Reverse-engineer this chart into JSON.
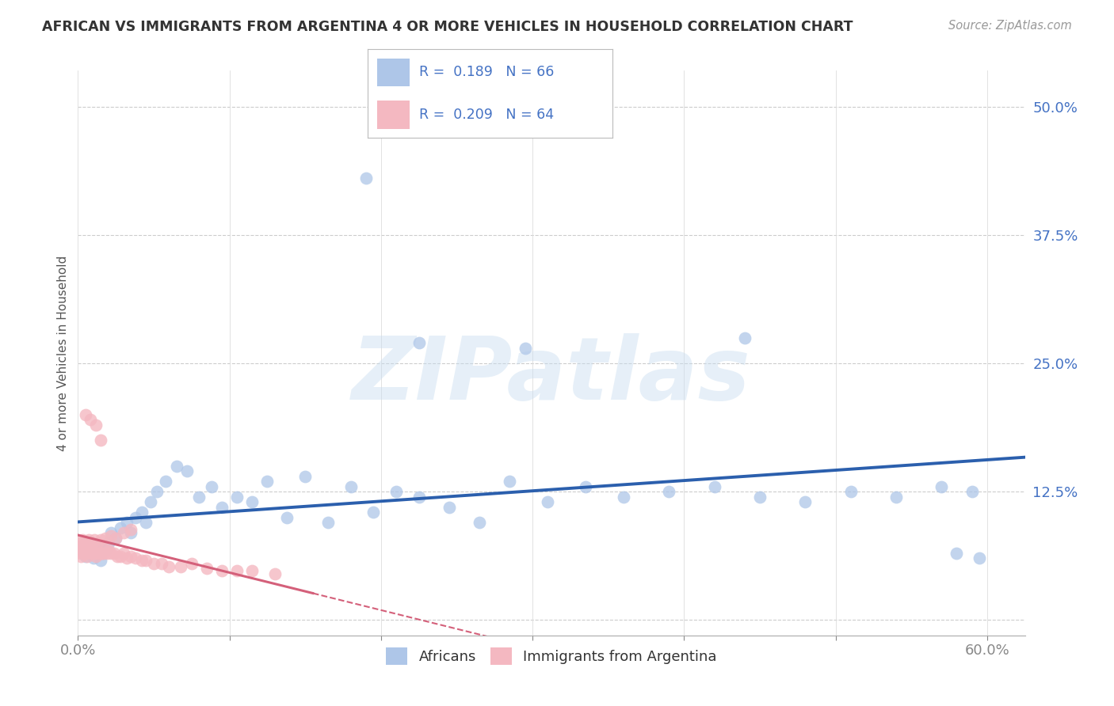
{
  "title": "AFRICAN VS IMMIGRANTS FROM ARGENTINA 4 OR MORE VEHICLES IN HOUSEHOLD CORRELATION CHART",
  "source": "Source: ZipAtlas.com",
  "ylabel": "4 or more Vehicles in Household",
  "xlim": [
    0.0,
    0.625
  ],
  "ylim": [
    -0.015,
    0.535
  ],
  "xticks": [
    0.0,
    0.1,
    0.2,
    0.3,
    0.4,
    0.5,
    0.6
  ],
  "yticks": [
    0.0,
    0.125,
    0.25,
    0.375,
    0.5
  ],
  "ytick_labels": [
    "",
    "12.5%",
    "25.0%",
    "37.5%",
    "50.0%"
  ],
  "xtick_labels": [
    "0.0%",
    "",
    "",
    "",
    "",
    "",
    "60.0%"
  ],
  "blue_color": "#aec6e8",
  "pink_color": "#f4b8c1",
  "blue_line_color": "#2b5fad",
  "pink_line_color": "#d4607a",
  "watermark": "ZIPatlas",
  "background_color": "#ffffff",
  "grid_color": "#cccccc",
  "legend_blue_label": "R =  0.189   N = 66",
  "legend_pink_label": "R =  0.209   N = 64",
  "africans_label": "Africans",
  "argentina_label": "Immigrants from Argentina"
}
